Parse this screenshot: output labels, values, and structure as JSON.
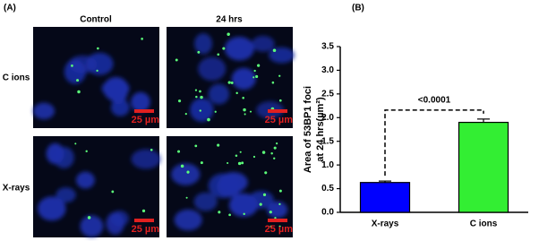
{
  "panel_a": {
    "label": "(A)",
    "columns": [
      "Control",
      "24 hrs"
    ],
    "rows": [
      "C ions",
      "X-rays"
    ],
    "scale_bar": "25 µm"
  },
  "chart_data": {
    "type": "bar",
    "label": "(B)",
    "ylabel": [
      "Area of 53BP1 foci",
      "at 24 hrs(µm²)"
    ],
    "categories": [
      "X-rays",
      "C ions"
    ],
    "values": [
      0.63,
      1.9
    ],
    "errors": [
      0.03,
      0.07
    ],
    "colors": [
      "#0000ff",
      "#33ee33"
    ],
    "ylim": [
      0,
      3.5
    ],
    "yticks": [
      {
        "value": 0,
        "label": "0.0"
      },
      0.5,
      {
        "value": 1,
        "label": "1.0"
      },
      1.5,
      {
        "value": 2,
        "label": "2.0"
      },
      2.5,
      {
        "value": 3,
        "label": "3.0"
      },
      3.5
    ],
    "annotation": "<0.0001"
  }
}
